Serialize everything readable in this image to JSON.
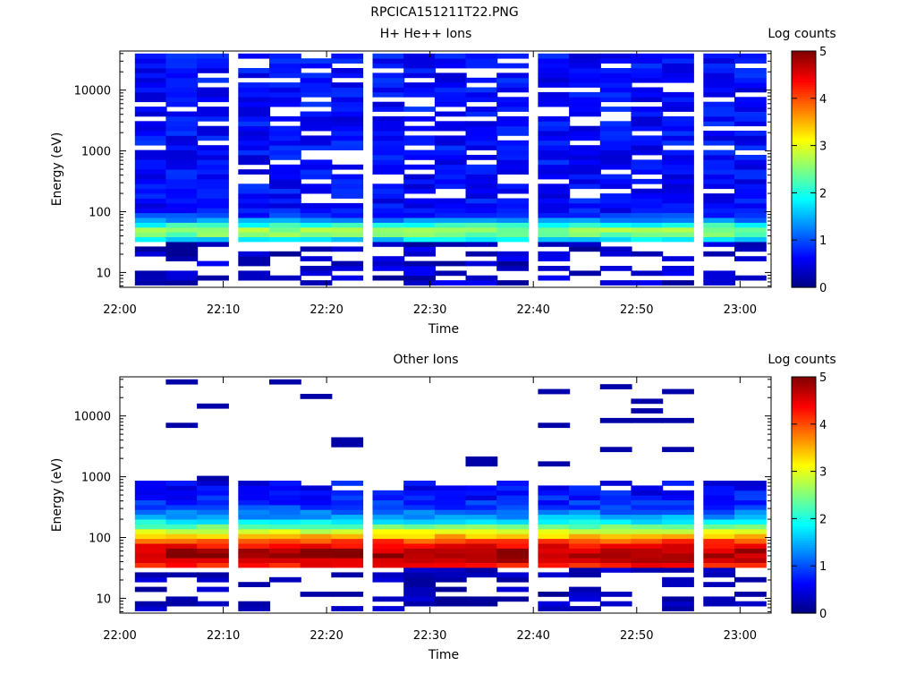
{
  "figure_title": "RPCICA151211T22.PNG",
  "chart_data": [
    {
      "type": "heatmap",
      "title": "H+ He++ Ions",
      "xlabel": "Time",
      "ylabel": "Energy (eV)",
      "y_scale": "log",
      "ylim": [
        5.7,
        44000
      ],
      "xlim": [
        "22:00",
        "23:03"
      ],
      "x_ticks": [
        "22:00",
        "22:10",
        "22:20",
        "22:30",
        "22:40",
        "22:50",
        "23:00"
      ],
      "y_ticks": [
        "10",
        "100",
        "1000",
        "10000"
      ],
      "time_bins": [
        "22:03",
        "22:06",
        "22:09",
        "22:13",
        "22:16",
        "22:19",
        "22:22",
        "22:26",
        "22:29",
        "22:32",
        "22:35",
        "22:38",
        "22:42",
        "22:45",
        "22:48",
        "22:51",
        "22:54",
        "22:58",
        "23:01"
      ],
      "colorbar": {
        "label": "Log counts",
        "range": [
          0,
          5
        ],
        "ticks": [
          "0",
          "1",
          "2",
          "3",
          "4",
          "5"
        ]
      },
      "summary_profile": {
        "description": "",
        "peak_energy_eV": 48,
        "peak_log_counts": 2.0,
        "background_log_counts": 0.4
      },
      "grid": false,
      "colormap": "jet"
    },
    {
      "type": "heatmap",
      "title": "Other Ions",
      "xlabel": "Time",
      "ylabel": "Energy (eV)",
      "y_scale": "log",
      "ylim": [
        5.7,
        44000
      ],
      "xlim": [
        "22:00",
        "23:03"
      ],
      "x_ticks": [
        "22:00",
        "22:10",
        "22:20",
        "22:30",
        "22:40",
        "22:50",
        "23:00"
      ],
      "y_ticks": [
        "10",
        "100",
        "1000",
        "10000"
      ],
      "time_bins": [
        "22:03",
        "22:06",
        "22:09",
        "22:13",
        "22:16",
        "22:19",
        "22:22",
        "22:26",
        "22:29",
        "22:32",
        "22:35",
        "22:38",
        "22:42",
        "22:45",
        "22:48",
        "22:51",
        "22:54",
        "22:58",
        "23:01"
      ],
      "colorbar": {
        "label": "Log counts",
        "range": [
          0,
          5
        ],
        "ticks": [
          "0",
          "1",
          "2",
          "3",
          "4",
          "5"
        ]
      },
      "summary_profile": {
        "peak_energy_eV": 52,
        "peak_log_counts": 4.2,
        "upper_edge_eV": 600,
        "lower_edge_eV": 33
      },
      "grid": false,
      "colormap": "jet"
    }
  ]
}
